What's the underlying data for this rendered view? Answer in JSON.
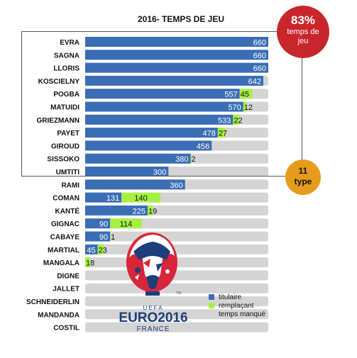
{
  "chart_data": {
    "type": "bar",
    "title": "2016- TEMPS DE JEU",
    "categories": [
      "EVRA",
      "SAGNA",
      "LLORIS",
      "KOSCIELNY",
      "POGBA",
      "MATUIDI",
      "GRIEZMANN",
      "PAYET",
      "GIROUD",
      "SISSOKO",
      "UMTITI",
      "RAMI",
      "COMAN",
      "KANTÉ",
      "GIGNAC",
      "CABAYE",
      "MARTIAL",
      "MANGALA",
      "DIGNE",
      "JALLET",
      "SCHNEIDERLIN",
      "MANDANDA",
      "COSTIL"
    ],
    "series": [
      {
        "name": "titulaire",
        "color": "#3a6db5",
        "values": [
          660,
          660,
          660,
          642,
          557,
          570,
          533,
          478,
          456,
          380,
          300,
          360,
          131,
          225,
          90,
          90,
          45,
          0,
          0,
          0,
          0,
          0,
          0
        ]
      },
      {
        "name": "remplaçant",
        "color": "#a6f043",
        "values": [
          0,
          0,
          0,
          0,
          45,
          12,
          22,
          27,
          0,
          2,
          0,
          0,
          140,
          19,
          114,
          1,
          23,
          18,
          0,
          0,
          0,
          0,
          0
        ]
      },
      {
        "name": "temps manqué",
        "color": "#d4d4d4"
      }
    ],
    "value_labels": [
      [
        "660",
        ""
      ],
      [
        "660",
        ""
      ],
      [
        "660",
        ""
      ],
      [
        "642",
        ""
      ],
      [
        "557",
        "45"
      ],
      [
        "570",
        "12"
      ],
      [
        "533",
        "22"
      ],
      [
        "478",
        "27"
      ],
      [
        "456",
        ""
      ],
      [
        "380",
        "2"
      ],
      [
        "300",
        ""
      ],
      [
        "360",
        ""
      ],
      [
        "131",
        "140"
      ],
      [
        "225",
        "19"
      ],
      [
        "90",
        "114"
      ],
      [
        "90",
        "1"
      ],
      [
        "45",
        "23"
      ],
      [
        "",
        "18"
      ],
      [
        "",
        ""
      ],
      [
        "",
        ""
      ],
      [
        "",
        ""
      ],
      [
        "",
        ""
      ],
      [
        "",
        ""
      ]
    ],
    "total_minutes": 660,
    "stacked": true
  },
  "badges": {
    "percent": "83%",
    "percent_caption_1": "temps de",
    "percent_caption_2": "jeu",
    "type_line1": "11",
    "type_line2": "type"
  },
  "legend": {
    "items": [
      {
        "label": "titulaire",
        "color": "#3a6db5"
      },
      {
        "label": "remplaçant",
        "color": "#a6f043"
      },
      {
        "label": "temps manqué",
        "color": "#d4d4d4"
      }
    ]
  },
  "logo": {
    "uefa": "UEFA",
    "euro": "EURO2016",
    "country": "FRANCE",
    "tm": "TM"
  }
}
